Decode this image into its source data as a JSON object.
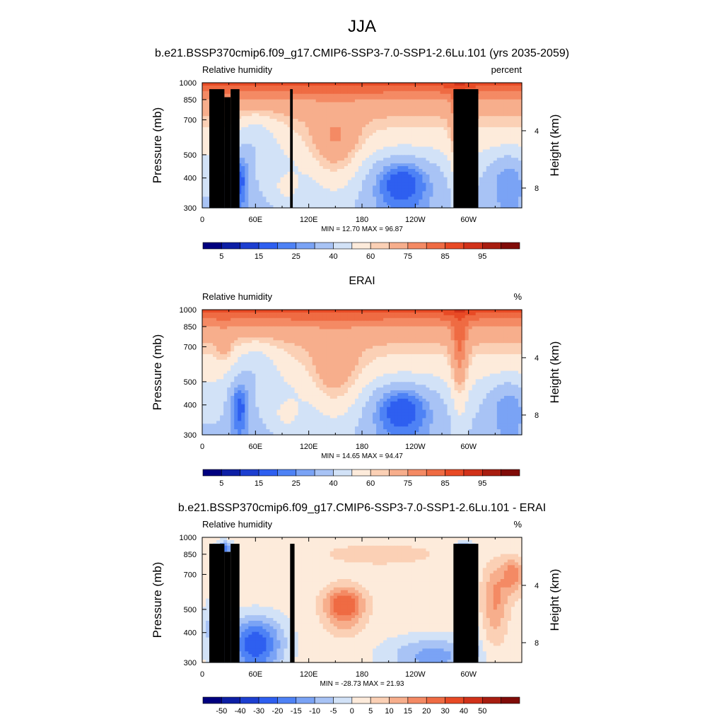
{
  "figure": {
    "title": "JJA"
  },
  "colors": {
    "abs_scale": [
      "#00007f",
      "#0d1fa5",
      "#1d3fd0",
      "#2e5ff0",
      "#4e82f5",
      "#7aa3f5",
      "#a8c3f5",
      "#d2e2f7",
      "#fdebdb",
      "#fbd0b5",
      "#f7ae8c",
      "#f48a64",
      "#ef6b43",
      "#e84a25",
      "#d1321a",
      "#a81d10",
      "#800b08"
    ],
    "diff_scale": [
      "#00007f",
      "#0d1fa5",
      "#1d3fd0",
      "#2e5ff0",
      "#4e82f5",
      "#7aa3f5",
      "#a8c3f5",
      "#d2e2f7",
      "#fdebdb",
      "#fbd0b5",
      "#f7ae8c",
      "#f48a64",
      "#ef6b43",
      "#e84a25",
      "#d1321a",
      "#a81d10",
      "#800b08"
    ],
    "topography": "#000000"
  },
  "chart_data": [
    {
      "type": "heatmap",
      "title": "b.e21.BSSP370cmip6.f09_g17.CMIP6-SSP3-7.0-SSP1-2.6Lu.101 (yrs 2035-2059)",
      "left_label": "Relative humidity",
      "right_label": "percent",
      "ylabel": "Pressure (mb)",
      "ylabel_right": "Height (km)",
      "xticks": [
        "0",
        "60E",
        "120E",
        "180",
        "120W",
        "60W"
      ],
      "xtick_values": [
        0,
        60,
        120,
        180,
        240,
        300
      ],
      "xlim": [
        0,
        360
      ],
      "yticks": [
        "300",
        "400",
        "500",
        "700",
        "850",
        "1000"
      ],
      "ytick_values": [
        300,
        400,
        500,
        700,
        850,
        1000
      ],
      "ylim": [
        1000,
        300
      ],
      "ylog": true,
      "right_ticks": [
        "8",
        "4"
      ],
      "right_tick_pressures": [
        363,
        630
      ],
      "minmax_text": "MIN = 12.70 MAX = 96.87",
      "min": 12.7,
      "max": 96.87,
      "levels": [
        5,
        10,
        15,
        20,
        25,
        30,
        40,
        50,
        60,
        65,
        75,
        80,
        85,
        90,
        95,
        97
      ],
      "colorbar_labels": [
        "5",
        "15",
        "25",
        "40",
        "60",
        "75",
        "85",
        "95"
      ],
      "colorbar_label_after_box": [
        1,
        3,
        5,
        7,
        9,
        11,
        13,
        15
      ],
      "terrain": [
        [
          8,
          25,
          940
        ],
        [
          25,
          32,
          870
        ],
        [
          32,
          42,
          940
        ],
        [
          99,
          102,
          940
        ],
        [
          283,
          311,
          940
        ]
      ]
    },
    {
      "type": "heatmap",
      "title": "ERAI",
      "left_label": "Relative humidity",
      "right_label": "%",
      "ylabel": "Pressure (mb)",
      "ylabel_right": "Height (km)",
      "xticks": [
        "0",
        "60E",
        "120E",
        "180",
        "120W",
        "60W"
      ],
      "xtick_values": [
        0,
        60,
        120,
        180,
        240,
        300
      ],
      "xlim": [
        0,
        360
      ],
      "yticks": [
        "300",
        "400",
        "500",
        "700",
        "850",
        "1000"
      ],
      "ytick_values": [
        300,
        400,
        500,
        700,
        850,
        1000
      ],
      "ylim": [
        1000,
        300
      ],
      "ylog": true,
      "right_ticks": [
        "8",
        "4"
      ],
      "right_tick_pressures": [
        363,
        630
      ],
      "minmax_text": "MIN = 14.65 MAX = 94.47",
      "min": 14.65,
      "max": 94.47,
      "levels": [
        5,
        10,
        15,
        20,
        25,
        30,
        40,
        50,
        60,
        65,
        75,
        80,
        85,
        90,
        95,
        97
      ],
      "colorbar_labels": [
        "5",
        "15",
        "25",
        "40",
        "60",
        "75",
        "85",
        "95"
      ],
      "colorbar_label_after_box": [
        1,
        3,
        5,
        7,
        9,
        11,
        13,
        15
      ],
      "terrain": []
    },
    {
      "type": "heatmap",
      "title": "b.e21.BSSP370cmip6.f09_g17.CMIP6-SSP3-7.0-SSP1-2.6Lu.101 - ERAI",
      "left_label": "Relative humidity",
      "right_label": "%",
      "ylabel": "Pressure (mb)",
      "ylabel_right": "Height (km)",
      "xticks": [
        "0",
        "60E",
        "120E",
        "180",
        "120W",
        "60W"
      ],
      "xtick_values": [
        0,
        60,
        120,
        180,
        240,
        300
      ],
      "xlim": [
        0,
        360
      ],
      "yticks": [
        "300",
        "400",
        "500",
        "700",
        "850",
        "1000"
      ],
      "ytick_values": [
        300,
        400,
        500,
        700,
        850,
        1000
      ],
      "ylim": [
        1000,
        300
      ],
      "ylog": true,
      "right_ticks": [
        "8",
        "4"
      ],
      "right_tick_pressures": [
        363,
        630
      ],
      "minmax_text": "MIN = -28.73 MAX = 21.93",
      "min": -28.73,
      "max": 21.93,
      "levels": [
        -50,
        -40,
        -30,
        -20,
        -15,
        -10,
        -5,
        0,
        5,
        10,
        15,
        20,
        30,
        40,
        50
      ],
      "colorbar_labels": [
        "-50",
        "-40",
        "-30",
        "-20",
        "-15",
        "-10",
        "-5",
        "0",
        "5",
        "10",
        "15",
        "20",
        "30",
        "40",
        "50"
      ],
      "colorbar_label_after_box": [
        1,
        2,
        3,
        4,
        5,
        6,
        7,
        8,
        9,
        10,
        11,
        12,
        13,
        14,
        15
      ],
      "terrain": [
        [
          8,
          25,
          940
        ],
        [
          25,
          32,
          870
        ],
        [
          32,
          42,
          940
        ],
        [
          99,
          104,
          940
        ],
        [
          283,
          311,
          940
        ]
      ]
    }
  ]
}
